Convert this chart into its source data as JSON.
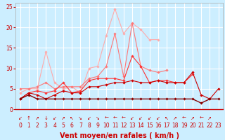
{
  "background_color": "#cceeff",
  "grid_color": "#ffffff",
  "xlabel": "Vent moyen/en rafales ( km/h )",
  "xlabel_color": "#cc0000",
  "xlabel_fontsize": 7,
  "tick_color": "#cc0000",
  "tick_fontsize": 5.5,
  "xlim": [
    -0.5,
    23.5
  ],
  "ylim": [
    0,
    26
  ],
  "yticks": [
    0,
    5,
    10,
    15,
    20,
    25
  ],
  "xticks": [
    0,
    1,
    2,
    3,
    4,
    5,
    6,
    7,
    8,
    9,
    10,
    11,
    12,
    13,
    14,
    15,
    16,
    17,
    18,
    19,
    20,
    21,
    22,
    23
  ],
  "arrow_labels": [
    "↙",
    "↑",
    "↗",
    "↓",
    "↙",
    "↗",
    "↖",
    "↘",
    "↙",
    "↘",
    "←",
    "←",
    "←",
    "↙",
    "↙",
    "↙",
    "↙",
    "↖",
    "↗",
    "←",
    "↗",
    "←",
    "↗"
  ],
  "series": [
    {
      "color": "#ffaaaa",
      "linewidth": 0.8,
      "marker": "D",
      "markersize": 1.8,
      "y": [
        4.0,
        5.0,
        5.0,
        14.0,
        6.5,
        5.0,
        5.5,
        4.0,
        10.0,
        10.5,
        18.0,
        24.5,
        18.5,
        21.0,
        19.5,
        17.0,
        17.0,
        null,
        null,
        null,
        null,
        null,
        null,
        null
      ]
    },
    {
      "color": "#ff7777",
      "linewidth": 0.8,
      "marker": "D",
      "markersize": 1.8,
      "y": [
        5.0,
        5.0,
        5.5,
        6.5,
        5.0,
        5.5,
        5.5,
        5.5,
        7.5,
        8.0,
        10.5,
        18.5,
        8.0,
        21.0,
        10.5,
        9.5,
        9.0,
        9.5,
        null,
        null,
        null,
        null,
        null,
        null
      ]
    },
    {
      "color": "#ff3333",
      "linewidth": 0.8,
      "marker": "D",
      "markersize": 1.8,
      "y": [
        2.5,
        4.0,
        4.5,
        4.0,
        4.5,
        6.5,
        4.0,
        4.5,
        7.0,
        7.5,
        7.5,
        7.5,
        7.0,
        13.0,
        10.5,
        6.5,
        7.0,
        7.0,
        6.5,
        6.5,
        8.5,
        null,
        null,
        null
      ]
    },
    {
      "color": "#cc0000",
      "linewidth": 0.8,
      "marker": "D",
      "markersize": 1.8,
      "y": [
        2.5,
        4.0,
        3.5,
        2.5,
        3.5,
        4.5,
        4.0,
        4.0,
        5.5,
        5.5,
        6.0,
        6.5,
        6.5,
        7.0,
        6.5,
        6.5,
        7.0,
        6.5,
        6.5,
        6.5,
        9.0,
        3.5,
        2.5,
        5.0
      ]
    },
    {
      "color": "#880000",
      "linewidth": 1.0,
      "marker": "D",
      "markersize": 1.8,
      "y": [
        2.5,
        3.5,
        2.5,
        2.5,
        2.5,
        2.5,
        2.5,
        2.5,
        2.5,
        2.5,
        2.5,
        2.5,
        2.5,
        2.5,
        2.5,
        2.5,
        2.5,
        2.5,
        2.5,
        2.5,
        2.5,
        1.5,
        2.5,
        2.5
      ]
    }
  ]
}
